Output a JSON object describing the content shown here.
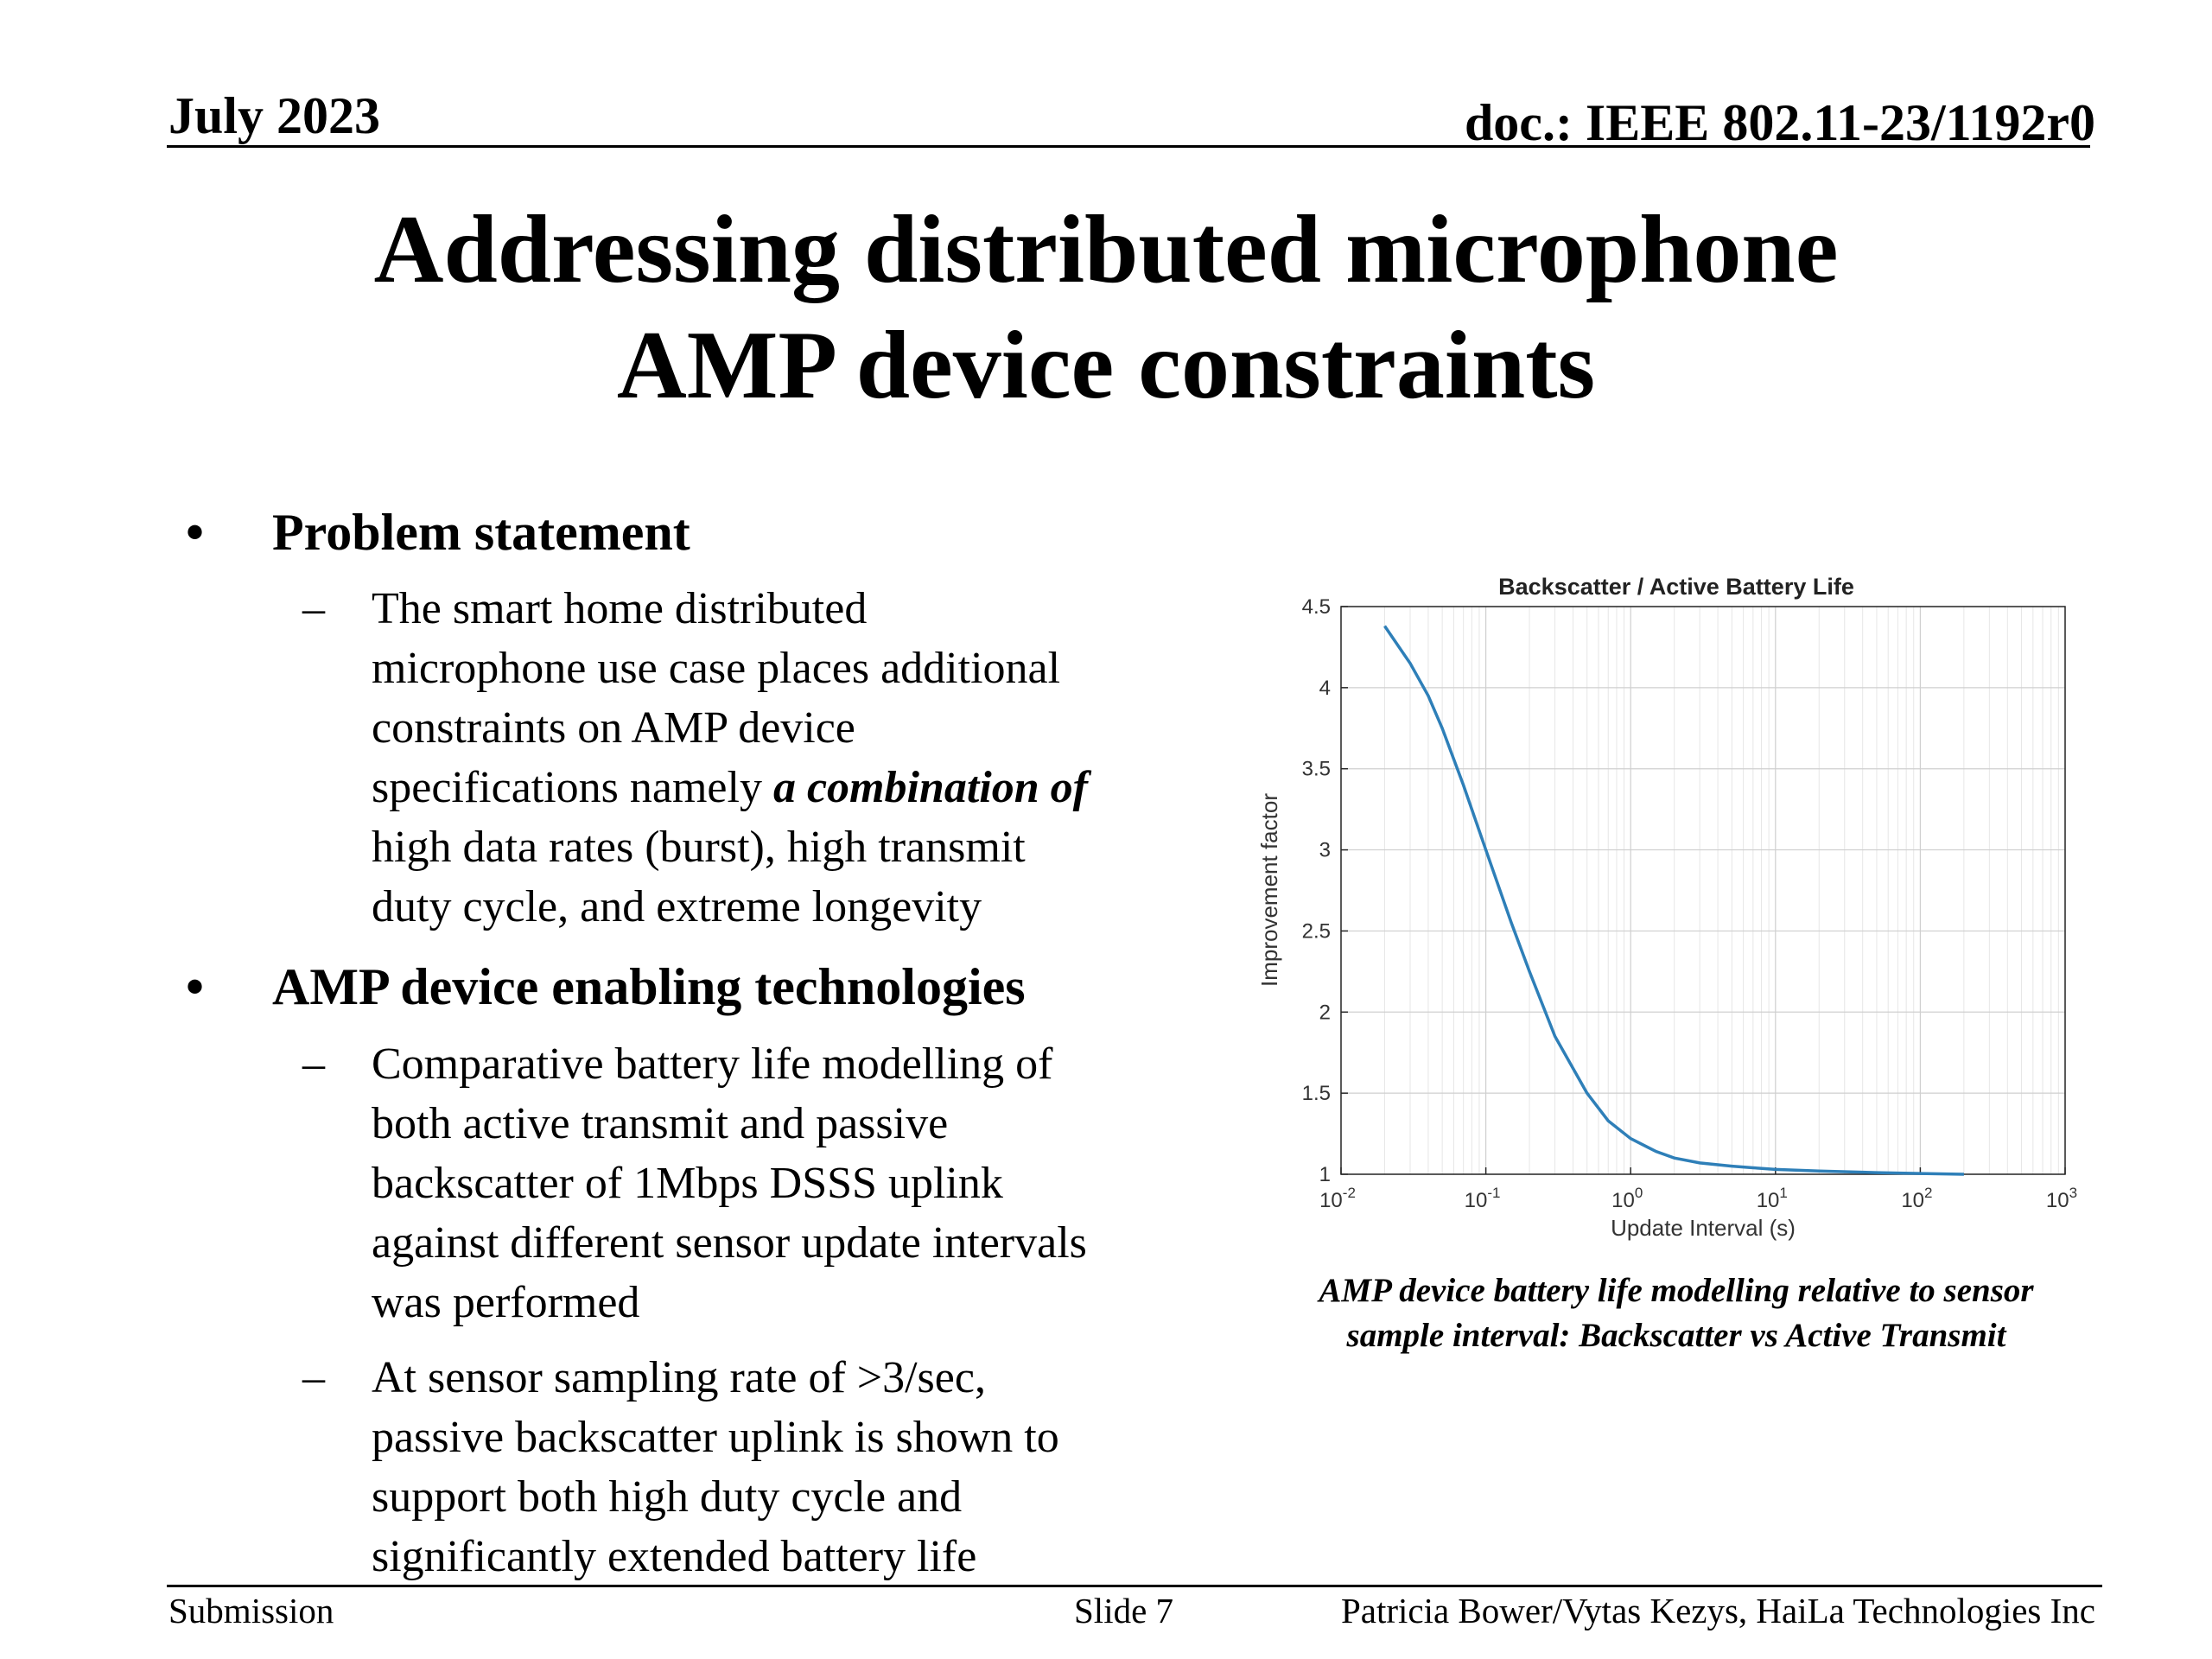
{
  "header": {
    "date": "July 2023",
    "doc": "doc.: IEEE 802.11-23/1192r0"
  },
  "title": {
    "line1": "Addressing distributed microphone",
    "line2": "AMP device constraints"
  },
  "bullets": {
    "b1": "Problem statement",
    "b1_sub1": {
      "l1": "The smart home distributed",
      "l2": "microphone use case places additional",
      "l3": "constraints on AMP device",
      "l4_pre": "specifications namely ",
      "l4_em": "a combination of",
      "l5": "high data rates (burst), high transmit",
      "l6": "duty cycle, and extreme longevity"
    },
    "b2": "AMP device enabling technologies",
    "b2_sub1": {
      "l1": "Comparative battery life modelling of",
      "l2": "both active transmit and passive",
      "l3": "backscatter of 1Mbps DSSS uplink",
      "l4": "against different sensor update intervals",
      "l5": "was performed"
    },
    "b2_sub2": {
      "l1": "At sensor sampling rate of >3/sec,",
      "l2": "passive backscatter uplink is shown to",
      "l3": "support both high duty cycle and",
      "l4": "significantly extended battery life"
    },
    "bullet_glyph": "•",
    "dash_glyph": "–"
  },
  "chart_data": {
    "type": "line",
    "title": "Backscatter / Active Battery Life",
    "xlabel": "Update Interval (s)",
    "ylabel": "Improvement factor",
    "x_scale": "log",
    "xlim": [
      0.01,
      1000
    ],
    "ylim": [
      1,
      4.5
    ],
    "x_ticks": [
      0.01,
      0.1,
      1,
      10,
      100,
      1000
    ],
    "x_tick_labels": [
      {
        "base": "10",
        "exp": "-2"
      },
      {
        "base": "10",
        "exp": "-1"
      },
      {
        "base": "10",
        "exp": "0"
      },
      {
        "base": "10",
        "exp": "1"
      },
      {
        "base": "10",
        "exp": "2"
      },
      {
        "base": "10",
        "exp": "3"
      }
    ],
    "y_ticks": [
      "1",
      "1.5",
      "2",
      "2.5",
      "3",
      "3.5",
      "4",
      "4.5"
    ],
    "grid": true,
    "color": "#2e7fb8",
    "series": [
      {
        "x": [
          0.02,
          0.03,
          0.04,
          0.05,
          0.07,
          0.1,
          0.15,
          0.2,
          0.3,
          0.5,
          0.7,
          1,
          1.5,
          2,
          3,
          5,
          7,
          10,
          20,
          50,
          100,
          200
        ],
        "values": [
          4.38,
          4.15,
          3.95,
          3.75,
          3.4,
          3.0,
          2.55,
          2.25,
          1.85,
          1.5,
          1.33,
          1.22,
          1.14,
          1.1,
          1.07,
          1.05,
          1.04,
          1.03,
          1.02,
          1.01,
          1.005,
          1.0
        ]
      }
    ]
  },
  "caption": {
    "line1": "AMP device battery life modelling relative to sensor",
    "line2": "sample interval: Backscatter vs Active Transmit"
  },
  "footer": {
    "left": "Submission",
    "center": "Slide 7",
    "right": "Patricia Bower/Vytas Kezys, HaiLa Technologies Inc"
  }
}
